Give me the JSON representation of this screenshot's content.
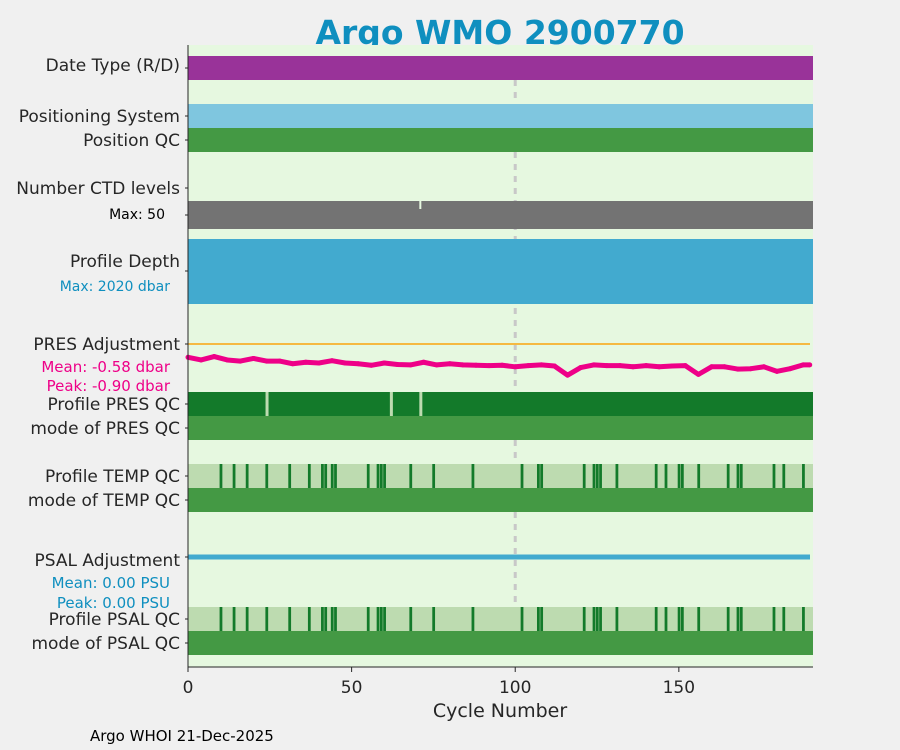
{
  "chart_data": {
    "type": "timeline",
    "title": "Argo WMO 2900770",
    "xlabel": "Cycle Number",
    "xlim": [
      0,
      191
    ],
    "xticks": [
      0,
      50,
      100,
      150
    ],
    "reference_cycle": 100,
    "footer": "Argo WHOI 21-Dec-2025",
    "rows": {
      "date_type": {
        "label": "Date Type (R/D)",
        "color": "#993399"
      },
      "positioning_system": {
        "label": "Positioning System",
        "color": "#7fc6df"
      },
      "position_qc": {
        "label": "Position QC",
        "color": "#449944"
      },
      "ctd_levels": {
        "label": "Number CTD levels",
        "max_text": "Max: 50",
        "color": "#737373",
        "reduced_cycles": [
          71
        ]
      },
      "profile_depth": {
        "label": "Profile Depth",
        "max_text": "Max: 2020 dbar",
        "color": "#42aacf"
      },
      "pres_adjustment": {
        "label": "PRES Adjustment",
        "mean_text": "Mean: -0.58 dbar",
        "peak_text": "Peak: -0.90 dbar",
        "color": "#ee0088",
        "zero_color": "#f5b942",
        "x": [
          0,
          4,
          8,
          12,
          16,
          20,
          24,
          28,
          32,
          36,
          40,
          44,
          48,
          52,
          56,
          60,
          64,
          68,
          72,
          76,
          80,
          84,
          88,
          92,
          96,
          100,
          104,
          108,
          112,
          116,
          120,
          124,
          128,
          132,
          136,
          140,
          144,
          148,
          152,
          156,
          160,
          164,
          168,
          172,
          176,
          180,
          184,
          188,
          190
        ],
        "values": [
          -0.35,
          -0.42,
          -0.33,
          -0.42,
          -0.45,
          -0.38,
          -0.45,
          -0.45,
          -0.52,
          -0.48,
          -0.5,
          -0.44,
          -0.5,
          -0.52,
          -0.56,
          -0.5,
          -0.54,
          -0.55,
          -0.48,
          -0.55,
          -0.52,
          -0.55,
          -0.56,
          -0.57,
          -0.56,
          -0.6,
          -0.57,
          -0.55,
          -0.58,
          -0.82,
          -0.62,
          -0.55,
          -0.57,
          -0.57,
          -0.6,
          -0.57,
          -0.6,
          -0.58,
          -0.57,
          -0.8,
          -0.6,
          -0.6,
          -0.66,
          -0.65,
          -0.6,
          -0.72,
          -0.65,
          -0.55,
          -0.55
        ]
      },
      "pres_qc": {
        "label": "Profile PRES QC",
        "color": "#137a2a",
        "gap_color": "#bddbb0",
        "gap_cycles": [
          24,
          62,
          71
        ]
      },
      "pres_qc_mode": {
        "label": "mode of PRES QC",
        "color": "#449944"
      },
      "temp_qc": {
        "label": "Profile TEMP QC",
        "color": "#bddbb0",
        "flag_color": "#137a2a",
        "flag_cycles": [
          10,
          14,
          18,
          24,
          31,
          37,
          41,
          42,
          44,
          45,
          55,
          58,
          59,
          60,
          68,
          75,
          87,
          102,
          107,
          108,
          121,
          124,
          125,
          126,
          131,
          143,
          146,
          150,
          151,
          156,
          165,
          168,
          169,
          179,
          182,
          188
        ]
      },
      "temp_qc_mode": {
        "label": "mode of TEMP QC",
        "color": "#449944"
      },
      "psal_adjustment": {
        "label": "PSAL Adjustment",
        "mean_text": "Mean: 0.00 PSU",
        "peak_text": "Peak: 0.00 PSU",
        "color": "#42aacf"
      },
      "psal_qc": {
        "label": "Profile PSAL QC",
        "color": "#bddbb0",
        "flag_color": "#137a2a",
        "flag_cycles": [
          10,
          14,
          18,
          24,
          31,
          37,
          41,
          42,
          44,
          45,
          55,
          58,
          59,
          60,
          68,
          75,
          87,
          102,
          107,
          108,
          121,
          124,
          125,
          126,
          131,
          143,
          146,
          150,
          151,
          156,
          165,
          168,
          169,
          179,
          182,
          188
        ]
      },
      "psal_qc_mode": {
        "label": "mode of PSAL QC",
        "color": "#449944"
      }
    }
  }
}
